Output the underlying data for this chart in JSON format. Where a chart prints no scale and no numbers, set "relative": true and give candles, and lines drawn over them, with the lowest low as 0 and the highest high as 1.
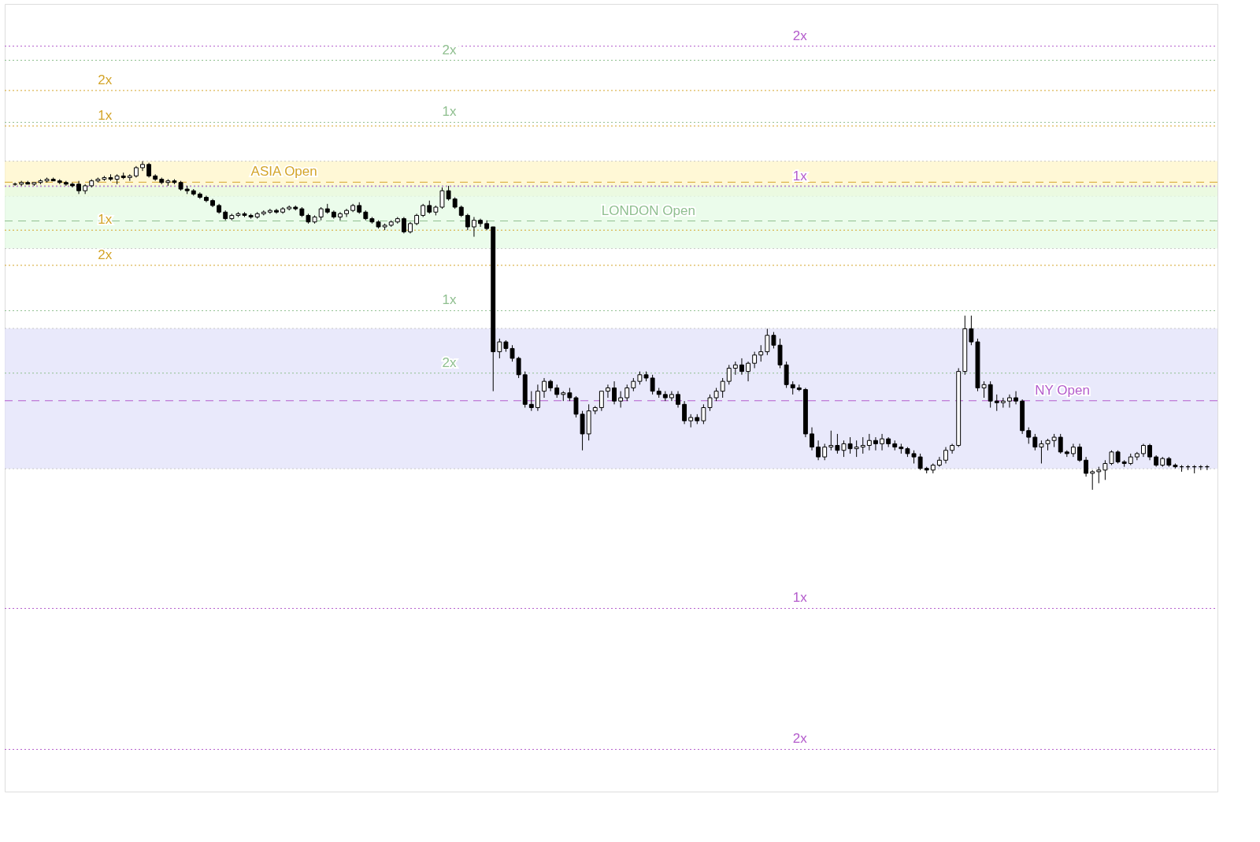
{
  "chart_data": {
    "type": "candlestick",
    "relative": true,
    "categories": [
      null,
      null,
      null,
      null,
      null,
      null,
      null,
      null,
      null,
      null,
      null,
      null,
      null,
      null,
      null,
      null,
      null,
      null,
      null,
      null,
      null,
      null,
      null,
      null,
      null,
      null,
      null,
      null,
      null,
      null,
      null,
      null,
      null,
      null,
      null,
      null,
      null,
      null,
      null,
      null,
      null,
      null,
      null,
      null,
      null,
      null,
      null,
      null,
      null,
      null,
      null,
      null,
      null,
      null,
      null,
      null,
      null,
      null,
      null,
      null,
      null,
      null,
      null,
      null,
      null,
      null,
      null,
      null,
      null,
      null,
      null,
      null,
      null,
      null,
      null,
      null,
      null,
      null,
      null,
      null,
      null,
      null,
      null,
      null,
      null,
      null,
      null,
      null,
      null,
      null,
      null,
      null,
      null,
      null,
      null,
      null,
      null,
      null,
      null,
      null,
      null,
      null,
      null,
      null,
      null,
      null,
      null,
      null,
      null,
      null,
      null,
      null,
      null,
      null,
      null,
      null,
      null,
      null,
      null,
      null,
      null,
      null,
      null,
      null,
      null,
      null,
      null,
      null,
      null,
      null,
      null,
      null,
      null,
      null,
      null,
      null,
      null,
      null,
      null,
      null,
      null,
      null,
      null,
      null,
      null,
      null,
      null,
      null,
      null,
      null,
      null,
      null,
      null,
      null,
      null,
      null,
      null,
      null,
      null,
      null,
      null,
      null,
      null,
      null,
      null,
      null,
      null,
      null,
      null,
      null,
      null,
      null,
      null,
      null,
      null,
      null,
      null,
      null,
      null,
      null,
      null,
      null,
      null,
      null,
      null,
      null,
      null,
      null
    ],
    "ohlc": [
      [
        0.93,
        0.935,
        0.925,
        0.93
      ],
      [
        0.93,
        0.94,
        0.925,
        0.935
      ],
      [
        0.935,
        0.94,
        0.93,
        0.93
      ],
      [
        0.93,
        0.935,
        0.925,
        0.935
      ],
      [
        0.935,
        0.945,
        0.93,
        0.94
      ],
      [
        0.94,
        0.95,
        0.935,
        0.945
      ],
      [
        0.945,
        0.95,
        0.94,
        0.94
      ],
      [
        0.94,
        0.945,
        0.93,
        0.935
      ],
      [
        0.935,
        0.94,
        0.925,
        0.93
      ],
      [
        0.93,
        0.935,
        0.92,
        0.925
      ],
      [
        0.93,
        0.94,
        0.9,
        0.91
      ],
      [
        0.91,
        0.93,
        0.9,
        0.925
      ],
      [
        0.925,
        0.945,
        0.92,
        0.94
      ],
      [
        0.94,
        0.95,
        0.935,
        0.945
      ],
      [
        0.945,
        0.955,
        0.94,
        0.95
      ],
      [
        0.95,
        0.96,
        0.94,
        0.945
      ],
      [
        0.945,
        0.96,
        0.93,
        0.955
      ],
      [
        0.955,
        0.965,
        0.945,
        0.95
      ],
      [
        0.95,
        0.96,
        0.94,
        0.955
      ],
      [
        0.955,
        0.985,
        0.95,
        0.98
      ],
      [
        0.98,
        1.0,
        0.97,
        0.99
      ],
      [
        0.99,
        0.995,
        0.95,
        0.955
      ],
      [
        0.955,
        0.96,
        0.94,
        0.945
      ],
      [
        0.945,
        0.95,
        0.93,
        0.935
      ],
      [
        0.935,
        0.945,
        0.925,
        0.94
      ],
      [
        0.94,
        0.945,
        0.93,
        0.935
      ],
      [
        0.935,
        0.94,
        0.91,
        0.915
      ],
      [
        0.915,
        0.925,
        0.9,
        0.91
      ],
      [
        0.91,
        0.915,
        0.895,
        0.9
      ],
      [
        0.9,
        0.905,
        0.885,
        0.89
      ],
      [
        0.89,
        0.895,
        0.875,
        0.88
      ],
      [
        0.88,
        0.885,
        0.86,
        0.865
      ],
      [
        0.865,
        0.87,
        0.84,
        0.845
      ],
      [
        0.845,
        0.85,
        0.82,
        0.825
      ],
      [
        0.825,
        0.84,
        0.82,
        0.835
      ],
      [
        0.835,
        0.845,
        0.83,
        0.84
      ],
      [
        0.84,
        0.845,
        0.83,
        0.835
      ],
      [
        0.835,
        0.84,
        0.825,
        0.83
      ],
      [
        0.83,
        0.845,
        0.825,
        0.84
      ],
      [
        0.84,
        0.85,
        0.835,
        0.845
      ],
      [
        0.845,
        0.855,
        0.84,
        0.85
      ],
      [
        0.85,
        0.855,
        0.84,
        0.845
      ],
      [
        0.845,
        0.86,
        0.84,
        0.855
      ],
      [
        0.855,
        0.865,
        0.85,
        0.86
      ],
      [
        0.86,
        0.865,
        0.85,
        0.855
      ],
      [
        0.855,
        0.86,
        0.83,
        0.835
      ],
      [
        0.835,
        0.84,
        0.81,
        0.815
      ],
      [
        0.815,
        0.835,
        0.81,
        0.83
      ],
      [
        0.83,
        0.86,
        0.82,
        0.855
      ],
      [
        0.855,
        0.87,
        0.84,
        0.845
      ],
      [
        0.845,
        0.85,
        0.825,
        0.83
      ],
      [
        0.83,
        0.845,
        0.82,
        0.84
      ],
      [
        0.84,
        0.855,
        0.83,
        0.85
      ],
      [
        0.85,
        0.87,
        0.845,
        0.865
      ],
      [
        0.865,
        0.875,
        0.84,
        0.845
      ],
      [
        0.845,
        0.85,
        0.82,
        0.825
      ],
      [
        0.825,
        0.83,
        0.81,
        0.815
      ],
      [
        0.815,
        0.82,
        0.795,
        0.8
      ],
      [
        0.8,
        0.81,
        0.79,
        0.805
      ],
      [
        0.805,
        0.82,
        0.8,
        0.815
      ],
      [
        0.815,
        0.83,
        0.81,
        0.825
      ],
      [
        0.825,
        0.83,
        0.78,
        0.785
      ],
      [
        0.785,
        0.815,
        0.78,
        0.81
      ],
      [
        0.81,
        0.84,
        0.805,
        0.835
      ],
      [
        0.835,
        0.87,
        0.83,
        0.865
      ],
      [
        0.865,
        0.88,
        0.84,
        0.845
      ],
      [
        0.845,
        0.865,
        0.835,
        0.86
      ],
      [
        0.86,
        0.92,
        0.855,
        0.91
      ],
      [
        0.91,
        0.925,
        0.88,
        0.885
      ],
      [
        0.885,
        0.89,
        0.855,
        0.86
      ],
      [
        0.86,
        0.865,
        0.83,
        0.835
      ],
      [
        0.835,
        0.84,
        0.79,
        0.8
      ],
      [
        0.8,
        0.83,
        0.77,
        0.82
      ],
      [
        0.82,
        0.825,
        0.8,
        0.81
      ],
      [
        0.81,
        0.82,
        0.79,
        0.795
      ],
      [
        0.8,
        0.8,
        0.3,
        0.42
      ],
      [
        0.42,
        0.46,
        0.4,
        0.45
      ],
      [
        0.45,
        0.455,
        0.42,
        0.43
      ],
      [
        0.43,
        0.44,
        0.39,
        0.4
      ],
      [
        0.4,
        0.405,
        0.34,
        0.35
      ],
      [
        0.35,
        0.36,
        0.25,
        0.26
      ],
      [
        0.26,
        0.3,
        0.24,
        0.25
      ],
      [
        0.25,
        0.32,
        0.24,
        0.3
      ],
      [
        0.3,
        0.34,
        0.28,
        0.33
      ],
      [
        0.33,
        0.335,
        0.3,
        0.31
      ],
      [
        0.31,
        0.32,
        0.28,
        0.29
      ],
      [
        0.29,
        0.3,
        0.27,
        0.295
      ],
      [
        0.295,
        0.31,
        0.27,
        0.28
      ],
      [
        0.28,
        0.285,
        0.22,
        0.23
      ],
      [
        0.23,
        0.24,
        0.12,
        0.17
      ],
      [
        0.17,
        0.26,
        0.15,
        0.24
      ],
      [
        0.24,
        0.255,
        0.23,
        0.25
      ],
      [
        0.25,
        0.3,
        0.24,
        0.3
      ],
      [
        0.3,
        0.32,
        0.28,
        0.31
      ],
      [
        0.31,
        0.33,
        0.26,
        0.27
      ],
      [
        0.27,
        0.3,
        0.25,
        0.28
      ],
      [
        0.28,
        0.32,
        0.27,
        0.31
      ],
      [
        0.31,
        0.34,
        0.3,
        0.33
      ],
      [
        0.33,
        0.36,
        0.32,
        0.35
      ],
      [
        0.35,
        0.36,
        0.33,
        0.34
      ],
      [
        0.34,
        0.35,
        0.29,
        0.3
      ],
      [
        0.3,
        0.31,
        0.28,
        0.29
      ],
      [
        0.29,
        0.3,
        0.27,
        0.28
      ],
      [
        0.28,
        0.3,
        0.27,
        0.29
      ],
      [
        0.29,
        0.3,
        0.25,
        0.26
      ],
      [
        0.26,
        0.27,
        0.2,
        0.21
      ],
      [
        0.21,
        0.23,
        0.19,
        0.22
      ],
      [
        0.22,
        0.23,
        0.2,
        0.21
      ],
      [
        0.21,
        0.26,
        0.2,
        0.25
      ],
      [
        0.25,
        0.29,
        0.24,
        0.28
      ],
      [
        0.28,
        0.31,
        0.27,
        0.3
      ],
      [
        0.3,
        0.34,
        0.28,
        0.33
      ],
      [
        0.33,
        0.38,
        0.32,
        0.37
      ],
      [
        0.37,
        0.39,
        0.35,
        0.38
      ],
      [
        0.38,
        0.4,
        0.35,
        0.36
      ],
      [
        0.36,
        0.39,
        0.33,
        0.385
      ],
      [
        0.385,
        0.42,
        0.37,
        0.41
      ],
      [
        0.41,
        0.44,
        0.39,
        0.42
      ],
      [
        0.42,
        0.49,
        0.41,
        0.47
      ],
      [
        0.47,
        0.48,
        0.43,
        0.44
      ],
      [
        0.44,
        0.46,
        0.37,
        0.38
      ],
      [
        0.38,
        0.39,
        0.31,
        0.32
      ],
      [
        0.32,
        0.33,
        0.29,
        0.31
      ],
      [
        0.31,
        0.32,
        0.3,
        0.305
      ],
      [
        0.305,
        0.31,
        0.16,
        0.17
      ],
      [
        0.17,
        0.19,
        0.12,
        0.13
      ],
      [
        0.13,
        0.15,
        0.09,
        0.1
      ],
      [
        0.1,
        0.14,
        0.09,
        0.13
      ],
      [
        0.13,
        0.18,
        0.12,
        0.135
      ],
      [
        0.135,
        0.17,
        0.11,
        0.12
      ],
      [
        0.12,
        0.15,
        0.1,
        0.14
      ],
      [
        0.14,
        0.16,
        0.11,
        0.125
      ],
      [
        0.125,
        0.15,
        0.1,
        0.13
      ],
      [
        0.13,
        0.16,
        0.11,
        0.135
      ],
      [
        0.135,
        0.17,
        0.12,
        0.15
      ],
      [
        0.15,
        0.16,
        0.12,
        0.14
      ],
      [
        0.14,
        0.17,
        0.12,
        0.155
      ],
      [
        0.155,
        0.16,
        0.13,
        0.14
      ],
      [
        0.14,
        0.15,
        0.12,
        0.13
      ],
      [
        0.13,
        0.14,
        0.11,
        0.125
      ],
      [
        0.125,
        0.13,
        0.1,
        0.11
      ],
      [
        0.11,
        0.12,
        0.08,
        0.1
      ],
      [
        0.1,
        0.11,
        0.06,
        0.065
      ],
      [
        0.065,
        0.07,
        0.05,
        0.06
      ],
      [
        0.06,
        0.08,
        0.05,
        0.075
      ],
      [
        0.075,
        0.1,
        0.07,
        0.09
      ],
      [
        0.09,
        0.13,
        0.08,
        0.12
      ],
      [
        0.12,
        0.14,
        0.11,
        0.135
      ],
      [
        0.135,
        0.37,
        0.13,
        0.36
      ],
      [
        0.36,
        0.53,
        0.35,
        0.49
      ],
      [
        0.49,
        0.53,
        0.44,
        0.45
      ],
      [
        0.45,
        0.46,
        0.3,
        0.31
      ],
      [
        0.31,
        0.33,
        0.28,
        0.32
      ],
      [
        0.32,
        0.33,
        0.25,
        0.27
      ],
      [
        0.27,
        0.29,
        0.24,
        0.265
      ],
      [
        0.265,
        0.28,
        0.25,
        0.27
      ],
      [
        0.27,
        0.29,
        0.25,
        0.28
      ],
      [
        0.28,
        0.3,
        0.26,
        0.27
      ],
      [
        0.27,
        0.275,
        0.17,
        0.18
      ],
      [
        0.18,
        0.19,
        0.14,
        0.16
      ],
      [
        0.16,
        0.17,
        0.12,
        0.13
      ],
      [
        0.13,
        0.15,
        0.08,
        0.14
      ],
      [
        0.14,
        0.155,
        0.12,
        0.15
      ],
      [
        0.15,
        0.17,
        0.13,
        0.16
      ],
      [
        0.16,
        0.17,
        0.11,
        0.115
      ],
      [
        0.115,
        0.12,
        0.1,
        0.11
      ],
      [
        0.11,
        0.14,
        0.1,
        0.13
      ],
      [
        0.13,
        0.14,
        0.085,
        0.09
      ],
      [
        0.09,
        0.1,
        0.04,
        0.05
      ],
      [
        0.05,
        0.06,
        0,
        0.055
      ],
      [
        0.055,
        0.07,
        0.02,
        0.06
      ],
      [
        0.06,
        0.09,
        0.03,
        0.08
      ],
      [
        0.08,
        0.12,
        0.075,
        0.115
      ],
      [
        0.115,
        0.12,
        0.08,
        0.085
      ],
      [
        0.085,
        0.09,
        0.07,
        0.08
      ],
      [
        0.08,
        0.11,
        0.075,
        0.1
      ],
      [
        0.1,
        0.115,
        0.09,
        0.11
      ],
      [
        0.11,
        0.14,
        0.1,
        0.135
      ],
      [
        0.135,
        0.14,
        0.09,
        0.1
      ],
      [
        0.1,
        0.105,
        0.07,
        0.075
      ],
      [
        0.075,
        0.1,
        0.07,
        0.095
      ],
      [
        0.095,
        0.1,
        0.07,
        0.075
      ],
      [
        0.075,
        0.08,
        0.065,
        0.07
      ],
      [
        0.07,
        0.075,
        0.055,
        0.07
      ],
      [
        0.07,
        0.075,
        0.06,
        0.07
      ],
      [
        0.07,
        0.075,
        0.05,
        0.07
      ],
      [
        0.07,
        0.075,
        0.06,
        0.07
      ],
      [
        0.07,
        0.075,
        0.06,
        0.07
      ]
    ],
    "ref_lines": [
      {
        "axis": "y",
        "value": 1.215,
        "label": "2x",
        "color": "#d4a52a",
        "line_style": "dotted"
      },
      {
        "axis": "y",
        "value": 1.107,
        "label": "1x",
        "color": "#d4a52a",
        "line_style": "dotted"
      },
      {
        "axis": "y",
        "value": 0.936,
        "label": "ASIA Open",
        "color": "#d4a52a",
        "line_style": "dashed"
      },
      {
        "axis": "y",
        "value": 0.79,
        "label": "1x",
        "color": "#d4a52a",
        "line_style": "dotted"
      },
      {
        "axis": "y",
        "value": 0.683,
        "label": "2x",
        "color": "#d4a52a",
        "line_style": "dotted"
      },
      {
        "axis": "y",
        "value": 1.307,
        "label": "2x",
        "color": "#8fbf8f",
        "line_style": "dotted"
      },
      {
        "axis": "y",
        "value": 1.118,
        "label": "1x",
        "color": "#8fbf8f",
        "line_style": "dotted"
      },
      {
        "axis": "y",
        "value": 0.818,
        "label": "LONDON Open",
        "color": "#8fbf8f",
        "line_style": "dashed"
      },
      {
        "axis": "y",
        "value": 0.545,
        "label": "1x",
        "color": "#8fbf8f",
        "line_style": "dotted"
      },
      {
        "axis": "y",
        "value": 0.355,
        "label": "2x",
        "color": "#8fbf8f",
        "line_style": "dotted"
      },
      {
        "axis": "y",
        "value": 1.35,
        "label": "2x",
        "color": "#b45ccc",
        "line_style": "dotted"
      },
      {
        "axis": "y",
        "value": 0.923,
        "label": "1x",
        "color": "#b45ccc",
        "line_style": "dotted"
      },
      {
        "axis": "y",
        "value": 0.271,
        "label": "NY Open",
        "color": "#b45ccc",
        "line_style": "dashed"
      },
      {
        "axis": "y",
        "value": -0.361,
        "label": "1x",
        "color": "#b45ccc",
        "line_style": "dotted"
      },
      {
        "axis": "y",
        "value": -0.79,
        "label": "2x",
        "color": "#b45ccc",
        "line_style": "dotted"
      }
    ],
    "bands": [
      {
        "axis": "y",
        "from": 0.893,
        "to": 1.0,
        "color": "#fff6c8"
      },
      {
        "axis": "y",
        "from": 0.734,
        "to": 0.926,
        "color": "#e4fbe4"
      },
      {
        "axis": "y",
        "from": 0.064,
        "to": 0.491,
        "color": "#e2e2fa"
      }
    ]
  }
}
